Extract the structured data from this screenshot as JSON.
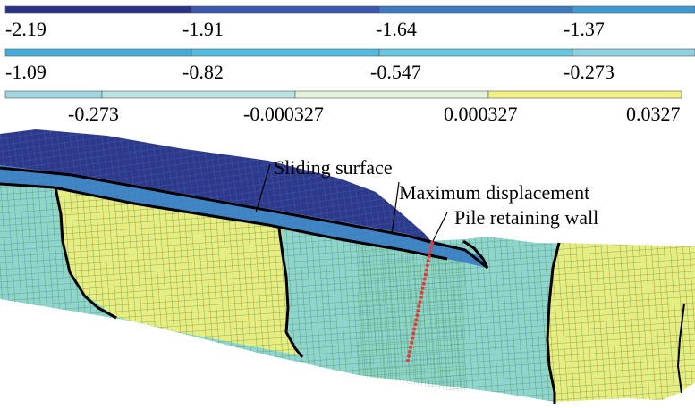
{
  "legend": {
    "rows": [
      {
        "ticks": [
          "-2.19",
          "-1.91",
          "-1.64",
          "-1.37"
        ],
        "colors": [
          "#2a3288",
          "#3b58ae",
          "#3f79c2",
          "#3f9ad2"
        ]
      },
      {
        "ticks": [
          "-1.09",
          "-0.82",
          "-0.547",
          "-0.273"
        ],
        "colors": [
          "#42aedd",
          "#4fbde3",
          "#66c8e2",
          "#8bd3e0"
        ]
      },
      {
        "ticks": [
          "-0.273",
          "-0.000327",
          "0.000327",
          "0.0327"
        ],
        "colors": [
          "#9fd6df",
          "#b9e3e3",
          "#e4f2dc",
          "#f3f083"
        ]
      }
    ]
  },
  "annotations": {
    "sliding_surface": "Sliding surface",
    "maximum_displacement": "Maximum displacement",
    "pile_retaining_wall": "Pile retaining wall"
  },
  "colors": {
    "sliding_mass": "#2d3a8c",
    "slip_band": "#3f86c4",
    "stable_soil": "#8fd4cf",
    "yellow_zone": "#e9ec80",
    "mesh_line": "#3a8a3a",
    "pile": "#e23b3b",
    "crack": "#000000"
  },
  "icons": [
    "pile-node-marker"
  ]
}
